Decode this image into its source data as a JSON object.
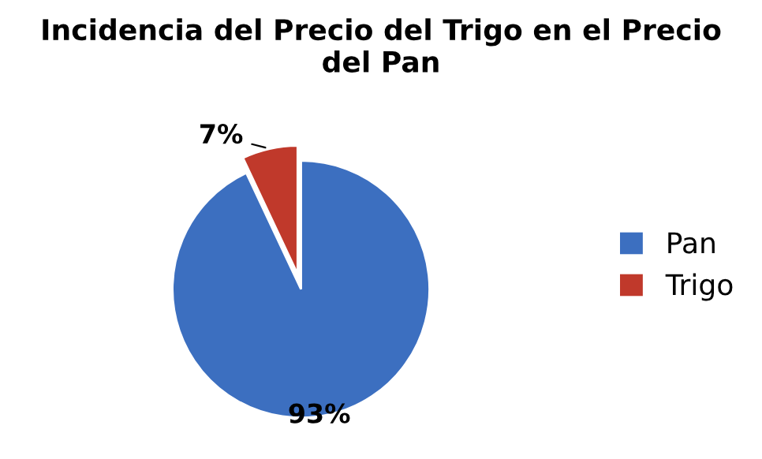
{
  "chart_data": {
    "type": "pie",
    "title": "Incidencia del Precio del Trigo en el Precio del Pan",
    "categories": [
      "Pan",
      "Trigo"
    ],
    "values": [
      93,
      7
    ],
    "colors": [
      "#3c6fc0",
      "#c0392b"
    ],
    "value_labels": [
      "93%",
      "7%"
    ],
    "legend": "right"
  }
}
